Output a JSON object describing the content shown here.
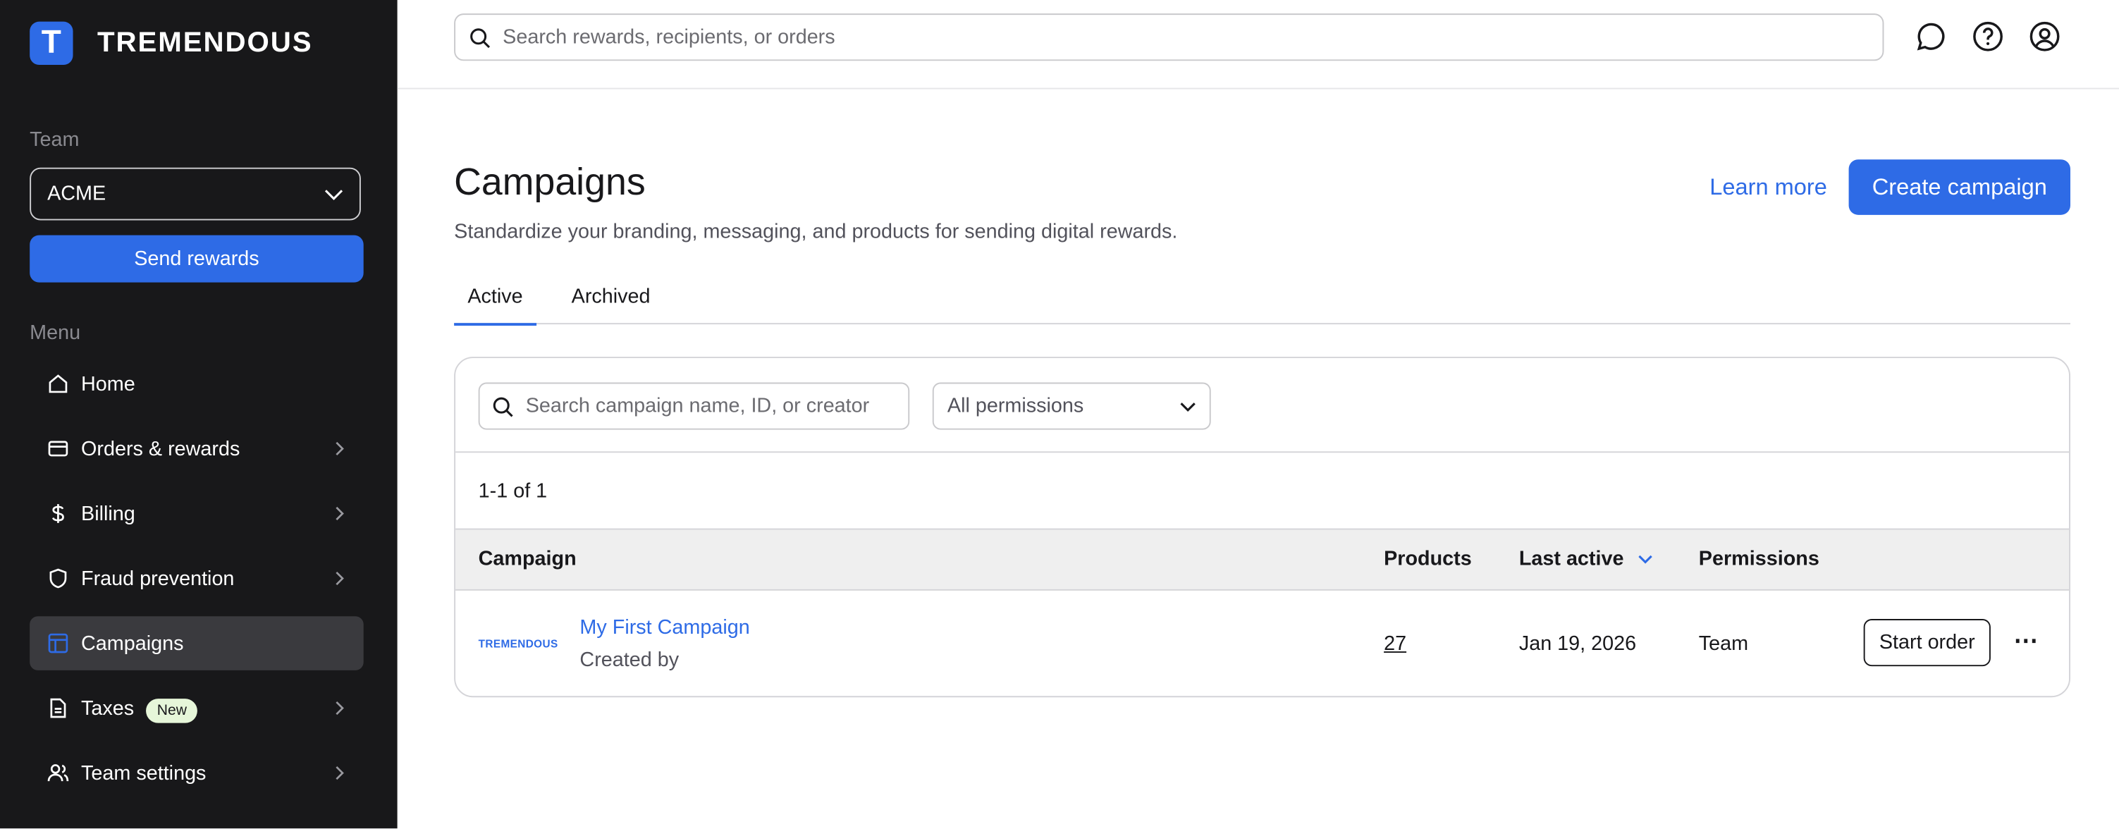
{
  "brand": {
    "name": "TREMENDOUS",
    "mark": "T",
    "accent": "#2e6be6"
  },
  "sidebar": {
    "team_label": "Team",
    "team_value": "ACME",
    "send_label": "Send rewards",
    "menu_label": "Menu",
    "items": [
      {
        "label": "Home",
        "icon": "home-icon",
        "chevron": false
      },
      {
        "label": "Orders & rewards",
        "icon": "card-icon",
        "chevron": true
      },
      {
        "label": "Billing",
        "icon": "dollar-icon",
        "chevron": true
      },
      {
        "label": "Fraud prevention",
        "icon": "shield-icon",
        "chevron": true
      },
      {
        "label": "Campaigns",
        "icon": "layout-icon",
        "chevron": false,
        "active": true
      },
      {
        "label": "Taxes",
        "icon": "document-icon",
        "chevron": true,
        "badge": "New"
      },
      {
        "label": "Team settings",
        "icon": "users-icon",
        "chevron": true
      }
    ]
  },
  "topbar": {
    "search_placeholder": "Search rewards, recipients, or orders"
  },
  "page": {
    "title": "Campaigns",
    "subtitle": "Standardize your branding, messaging, and products for sending digital rewards.",
    "learn_more": "Learn more",
    "create": "Create campaign",
    "tabs": [
      "Active",
      "Archived"
    ],
    "search_placeholder": "Search campaign name, ID, or creator",
    "permissions_filter": "All permissions",
    "count": "1-1 of 1",
    "columns": [
      "Campaign",
      "Products",
      "Last active",
      "Permissions"
    ],
    "rows": [
      {
        "logo": "TREMENDOUS",
        "name": "My First Campaign",
        "created": "Created by",
        "products": "27",
        "last_active": "Jan 19, 2026",
        "permissions": "Team",
        "action": "Start order",
        "more": "⋯"
      }
    ]
  }
}
